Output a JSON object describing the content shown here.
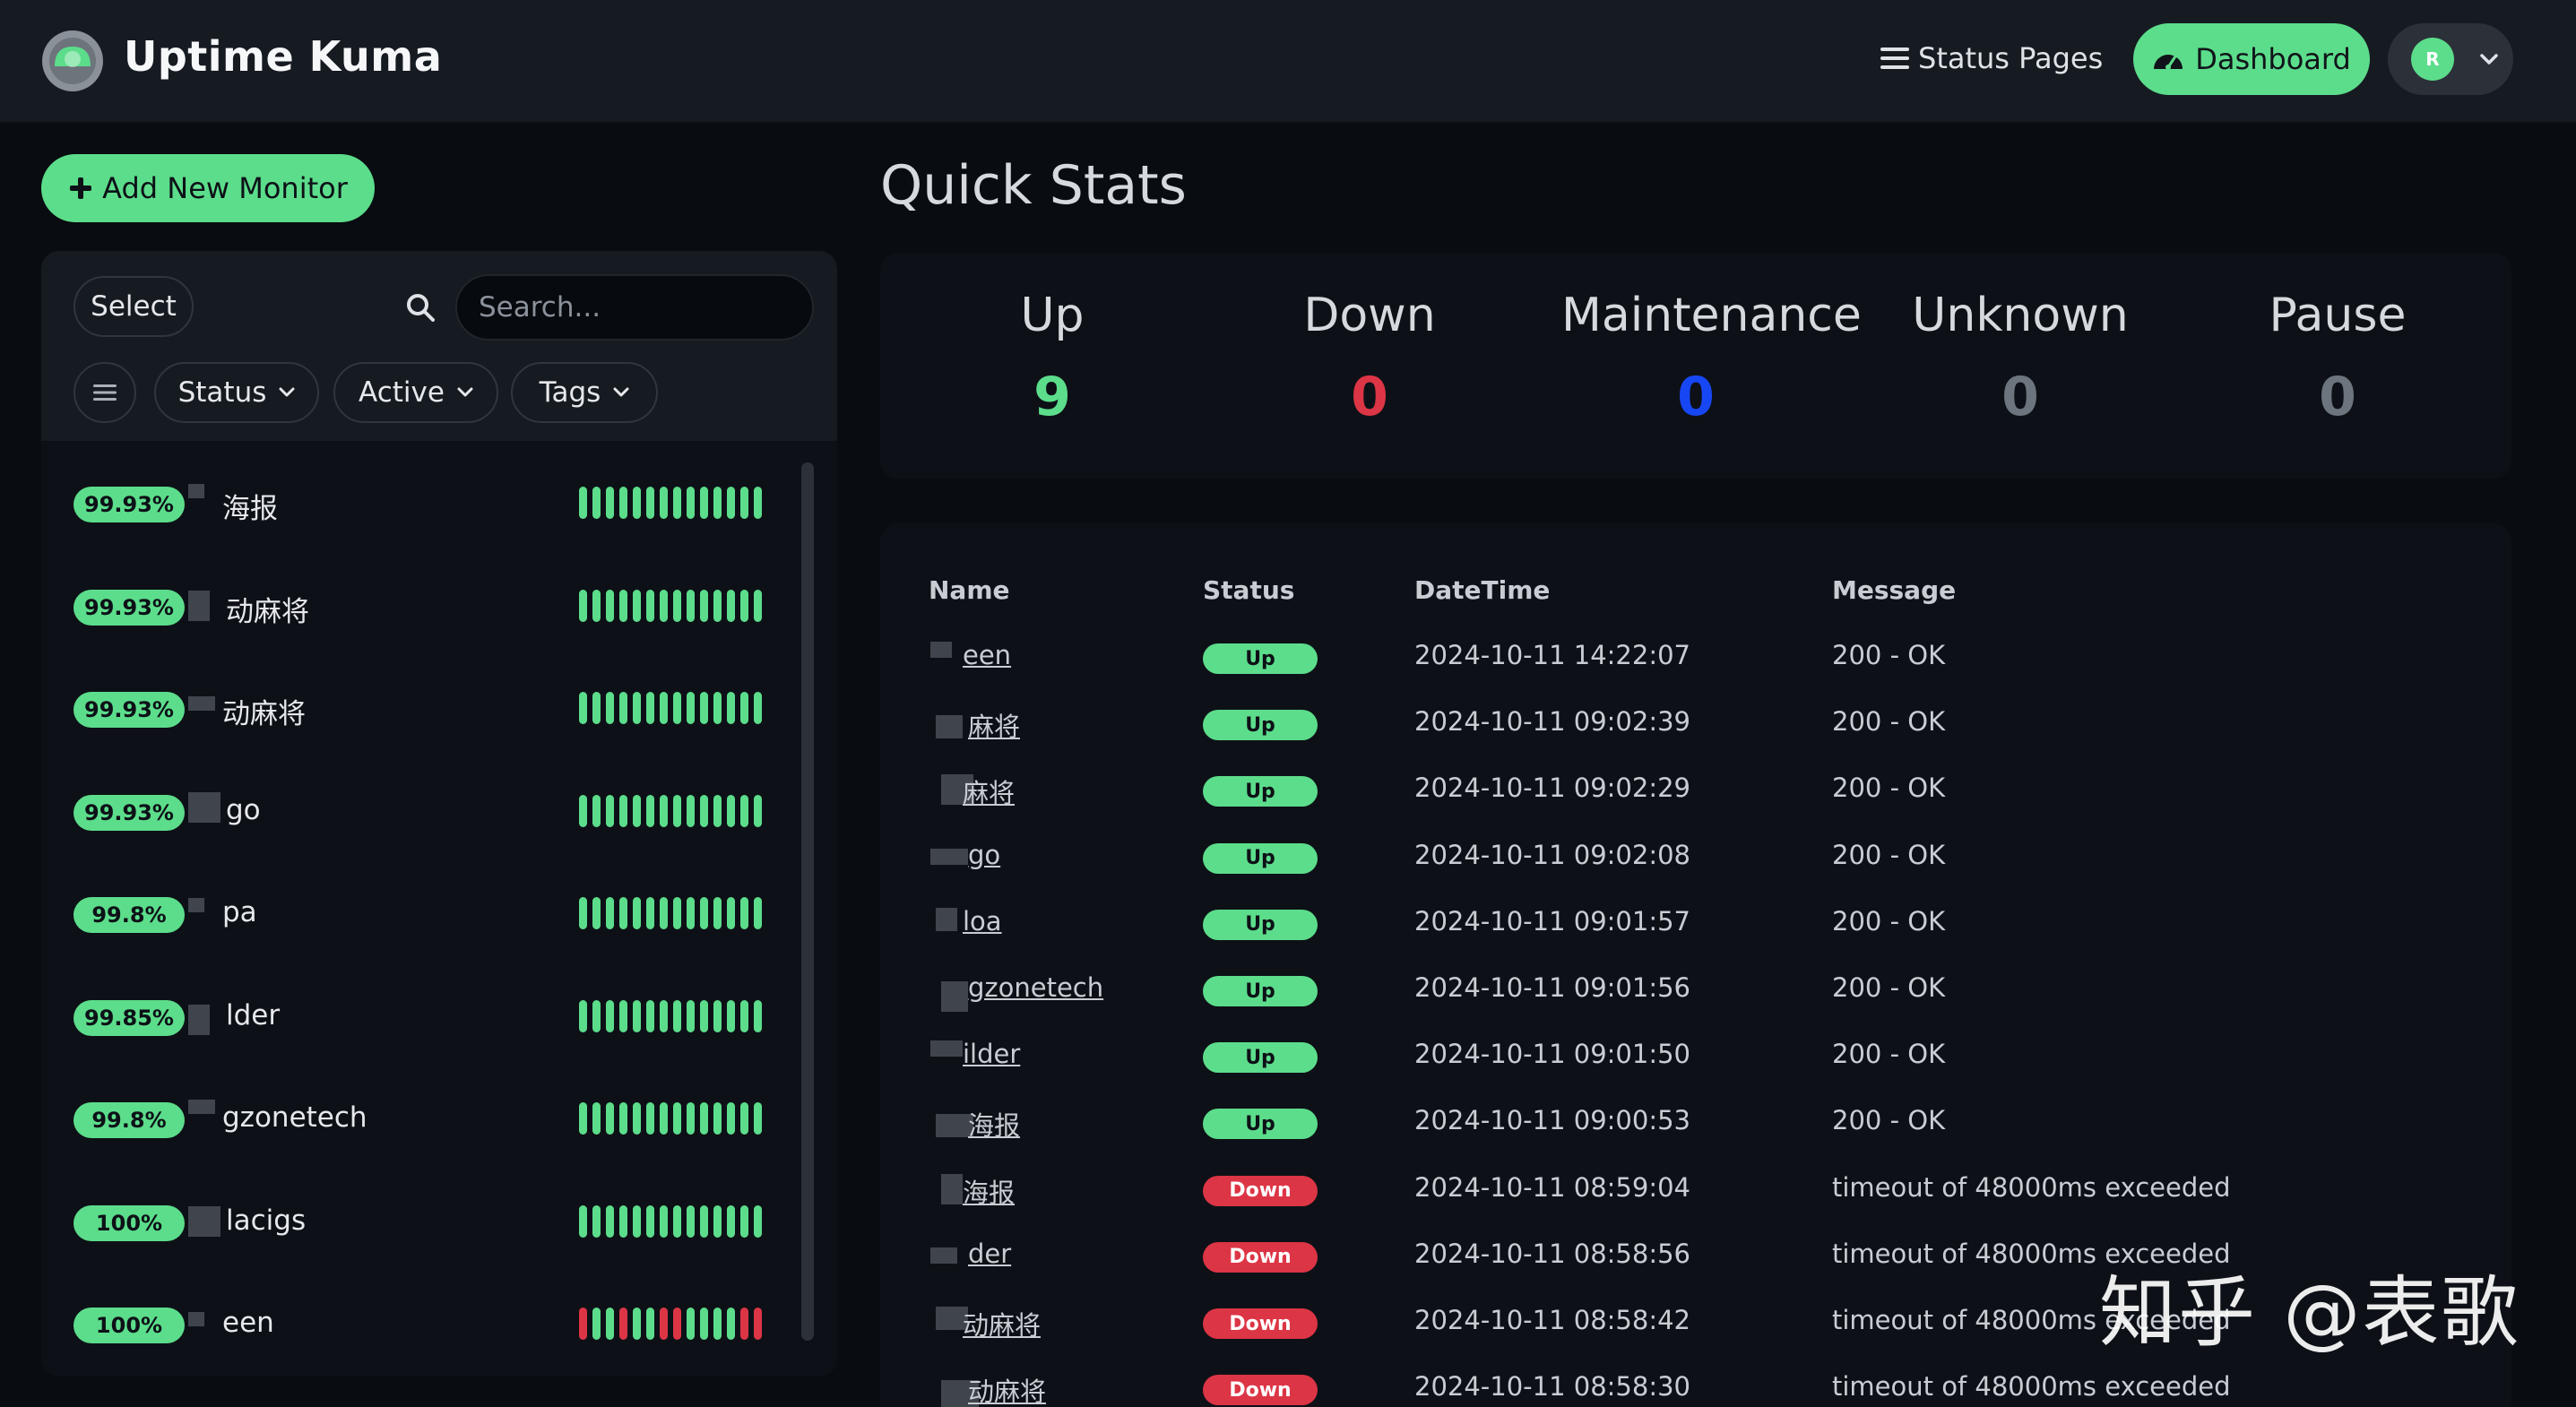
{
  "header": {
    "title": "Uptime Kuma",
    "status_pages_label": "Status Pages",
    "dashboard_label": "Dashboard",
    "avatar_letter": "R"
  },
  "sidebar": {
    "add_monitor_label": "Add New Monitor",
    "select_label": "Select",
    "search_placeholder": "Search...",
    "filters": {
      "status": "Status",
      "active": "Active",
      "tags": "Tags"
    },
    "monitors": [
      {
        "uptime": "99.93%",
        "name": "海报",
        "beats": "gggggggggggggg"
      },
      {
        "uptime": "99.93%",
        "name": "动麻将",
        "beats": "gggggggggggggg"
      },
      {
        "uptime": "99.93%",
        "name": "动麻将",
        "beats": "gggggggggggggg"
      },
      {
        "uptime": "99.93%",
        "name": "go",
        "beats": "gggggggggggggg"
      },
      {
        "uptime": "99.8%",
        "name": "pa",
        "beats": "gggggggggggggg"
      },
      {
        "uptime": "99.85%",
        "name": "lder",
        "beats": "gggggggggggggg"
      },
      {
        "uptime": "99.8%",
        "name": "gzonetech",
        "beats": "gggggggggggggg"
      },
      {
        "uptime": "100%",
        "name": "lacigs",
        "beats": "gggggggggggggg"
      },
      {
        "uptime": "100%",
        "name": "een",
        "beats": "rggrggrrggggrr"
      }
    ]
  },
  "quick_stats": {
    "title": "Quick Stats",
    "items": [
      {
        "label": "Up",
        "value": "9",
        "color": "#5cdd8b"
      },
      {
        "label": "Down",
        "value": "0",
        "color": "#dc3545"
      },
      {
        "label": "Maintenance",
        "value": "0",
        "color": "#1747f5"
      },
      {
        "label": "Unknown",
        "value": "0",
        "color": "#6c757d"
      },
      {
        "label": "Pause",
        "value": "0",
        "color": "#6c757d"
      }
    ]
  },
  "events": {
    "headers": {
      "name": "Name",
      "status": "Status",
      "datetime": "DateTime",
      "message": "Message"
    },
    "rows": [
      {
        "name": "een",
        "status": "Up",
        "datetime": "2024-10-11 14:22:07",
        "message": "200 - OK"
      },
      {
        "name": "麻将",
        "status": "Up",
        "datetime": "2024-10-11 09:02:39",
        "message": "200 - OK"
      },
      {
        "name": "麻将",
        "status": "Up",
        "datetime": "2024-10-11 09:02:29",
        "message": "200 - OK"
      },
      {
        "name": "go",
        "status": "Up",
        "datetime": "2024-10-11 09:02:08",
        "message": "200 - OK"
      },
      {
        "name": "loa",
        "status": "Up",
        "datetime": "2024-10-11 09:01:57",
        "message": "200 - OK"
      },
      {
        "name": "gzonetech",
        "status": "Up",
        "datetime": "2024-10-11 09:01:56",
        "message": "200 - OK"
      },
      {
        "name": "ilder",
        "status": "Up",
        "datetime": "2024-10-11 09:01:50",
        "message": "200 - OK"
      },
      {
        "name": "海报",
        "status": "Up",
        "datetime": "2024-10-11 09:00:53",
        "message": "200 - OK"
      },
      {
        "name": "海报",
        "status": "Down",
        "datetime": "2024-10-11 08:59:04",
        "message": "timeout of 48000ms exceeded"
      },
      {
        "name": "der",
        "status": "Down",
        "datetime": "2024-10-11 08:58:56",
        "message": "timeout of 48000ms exceeded"
      },
      {
        "name": "动麻将",
        "status": "Down",
        "datetime": "2024-10-11 08:58:42",
        "message": "timeout of 48000ms exceeded"
      },
      {
        "name": "动麻将",
        "status": "Down",
        "datetime": "2024-10-11 08:58:30",
        "message": "timeout of 48000ms exceeded"
      }
    ]
  },
  "colors": {
    "up": "#5cdd8b",
    "down": "#dc3545"
  },
  "watermark": "知乎 @表歌"
}
